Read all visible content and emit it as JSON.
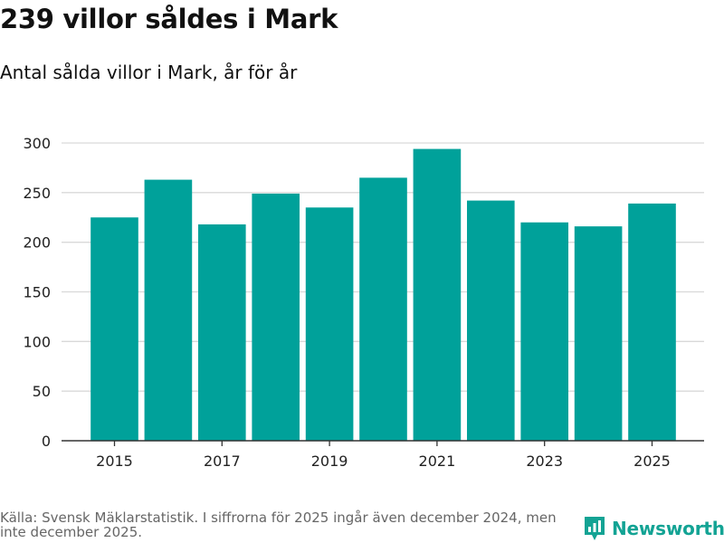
{
  "title": "239 villor såldes i Mark",
  "subtitle": "Antal sålda villor i Mark, år för år",
  "colors": {
    "bar": "#00a19a",
    "grid": "#d9d9d9",
    "axis": "#333333",
    "brand": "#13a394"
  },
  "chart_data": {
    "type": "bar",
    "title": "239 villor såldes i Mark",
    "subtitle": "Antal sålda villor i Mark, år för år",
    "categories": [
      "2015",
      "2016",
      "2017",
      "2018",
      "2019",
      "2020",
      "2021",
      "2022",
      "2023",
      "2024",
      "2025"
    ],
    "values": [
      225,
      263,
      218,
      249,
      235,
      265,
      294,
      242,
      220,
      216,
      239
    ],
    "x_tick_labels": [
      "2015",
      "2017",
      "2019",
      "2021",
      "2023",
      "2025"
    ],
    "y_ticks": [
      0,
      50,
      100,
      150,
      200,
      250,
      300
    ],
    "ylim": [
      0,
      300
    ],
    "xlabel": "",
    "ylabel": "",
    "grid": true,
    "legend": "none"
  },
  "footer": {
    "source": "Källa: Svensk Mäklarstatistik. I siffrorna för 2025 ingår även december 2024, men inte december 2025.",
    "brand": "Newsworthy",
    "brand_icon": "newsworthy-logo-icon"
  }
}
